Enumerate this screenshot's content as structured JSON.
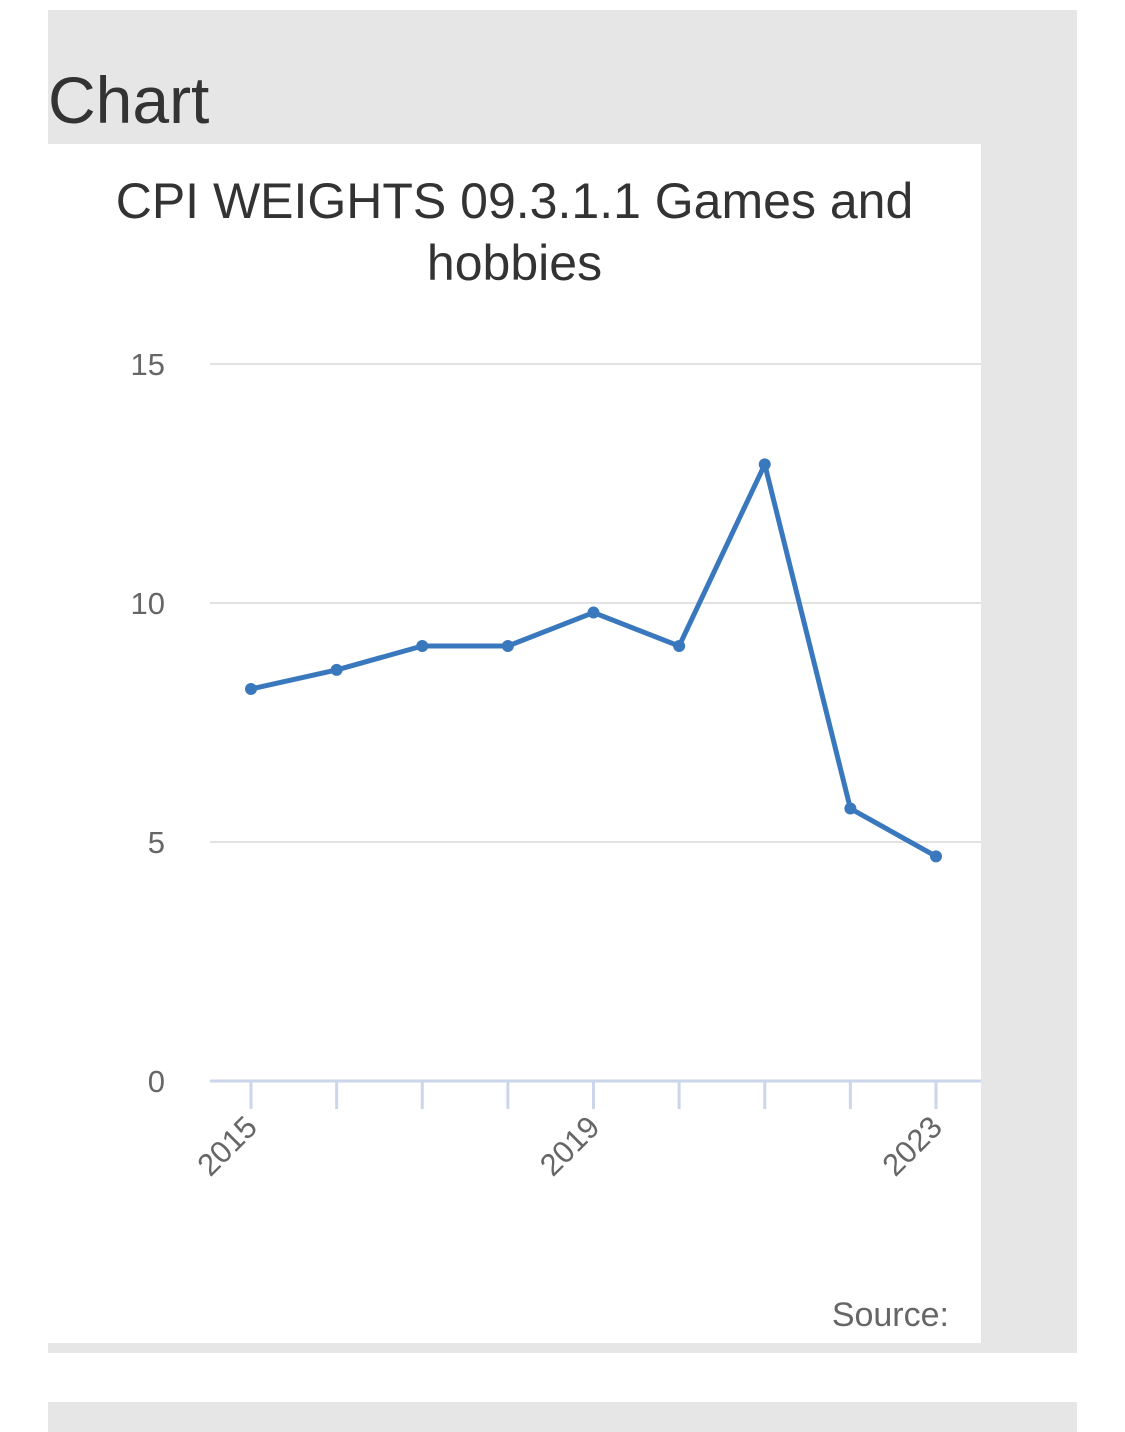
{
  "panel": {
    "heading": "Chart"
  },
  "chart_data": {
    "type": "line",
    "title": "CPI WEIGHTS 09.3.1.1 Games and hobbies",
    "x": [
      2015,
      2016,
      2017,
      2018,
      2019,
      2020,
      2021,
      2022,
      2023
    ],
    "x_tick_labels": [
      "2015",
      "",
      "",
      "",
      "2019",
      "",
      "",
      "",
      "2023"
    ],
    "series": [
      {
        "values": [
          8.2,
          8.6,
          9.1,
          9.1,
          9.8,
          9.1,
          12.9,
          5.7,
          4.7
        ],
        "color": "#3a78be"
      }
    ],
    "y_ticks": [
      0,
      5,
      10,
      15
    ],
    "ylim": [
      0,
      15
    ],
    "xlabel": "",
    "ylabel": "",
    "grid": true,
    "legend": "none"
  },
  "footer": {
    "source_label": "Source:"
  },
  "colors": {
    "line": "#3a78be",
    "grid": "#e2e2e2",
    "axis": "#ccd6eb",
    "panel": "#e6e6e6"
  }
}
